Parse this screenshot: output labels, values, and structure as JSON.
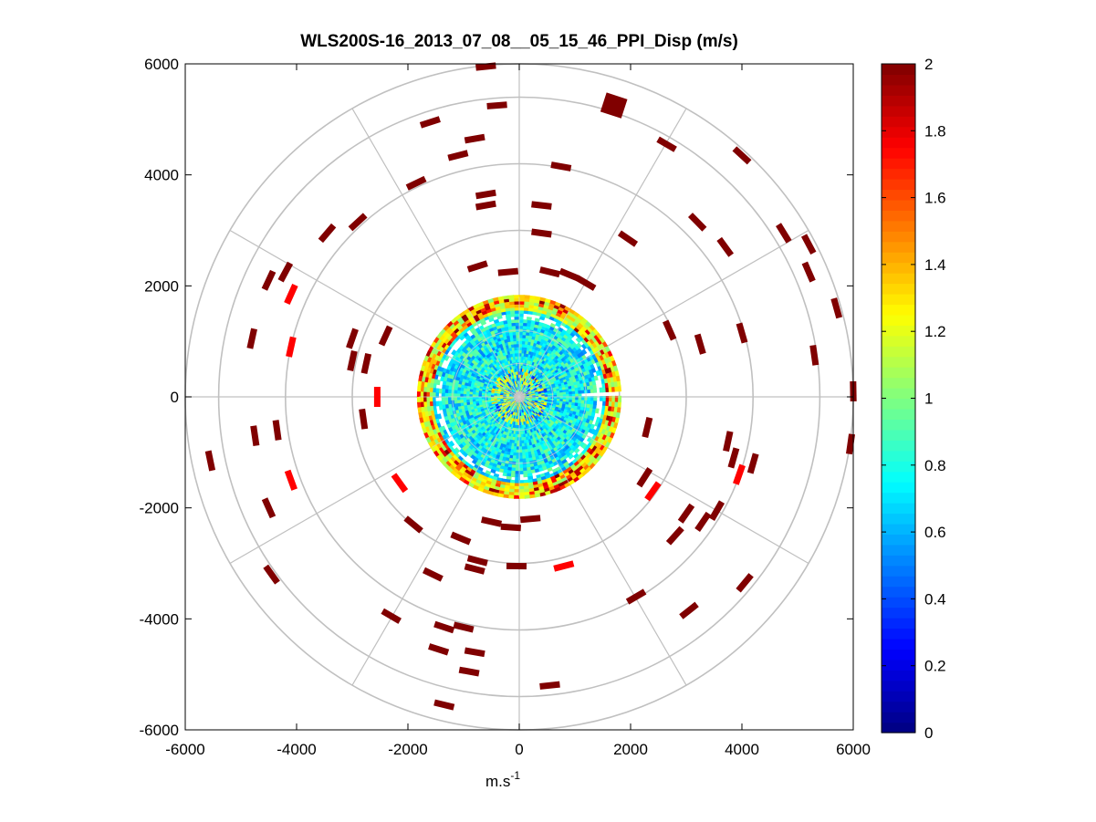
{
  "chart_data": {
    "type": "scatter",
    "subtype": "polar PPI scan (range gates coloured by value)",
    "title": "WLS200S-16_2013_07_08__05_15_46_PPI_Disp (m/s)",
    "xlabel": "m.s",
    "xlabel_superscript": "-1",
    "ylabel": "",
    "xlim": [
      -6000,
      6000
    ],
    "ylim": [
      -6000,
      6000
    ],
    "x_ticks": [
      "-6000",
      "-4000",
      "-2000",
      "0",
      "2000",
      "4000",
      "6000"
    ],
    "y_ticks": [
      "6000",
      "4000",
      "2000",
      "0",
      "-2000",
      "-4000",
      "-6000"
    ],
    "polar_grid": {
      "ring_radii": [
        1800,
        3000,
        4200,
        5400,
        6000
      ],
      "spoke_angles_deg": [
        0,
        30,
        60,
        90,
        120,
        150,
        180,
        210,
        240,
        270,
        300,
        330
      ],
      "grid": true,
      "grid_color": "#c0c0c0"
    },
    "colorbar": {
      "colormap": "jet",
      "clim": [
        0,
        2
      ],
      "ticks": [
        "0",
        "0.2",
        "0.4",
        "0.6",
        "0.8",
        "1",
        "1.2",
        "1.4",
        "1.6",
        "1.8",
        "2"
      ]
    },
    "dense_core": {
      "max_range": 1800,
      "typical_value_range": [
        0.5,
        1.0
      ],
      "gap_azimuth_deg": 3,
      "gap_min_range": 1100,
      "rim_range": [
        1500,
        1760
      ],
      "rim_value_range": [
        1.0,
        2.0
      ]
    },
    "points": [
      {
        "x": 1700,
        "y": 5250,
        "v": 2.0,
        "size": 2
      },
      {
        "x": -600,
        "y": 5950,
        "v": 2.0
      },
      {
        "x": -400,
        "y": 5250,
        "v": 2.0
      },
      {
        "x": -1600,
        "y": 4950,
        "v": 2.0
      },
      {
        "x": -800,
        "y": 4650,
        "v": 2.0
      },
      {
        "x": -1100,
        "y": 4350,
        "v": 2.0
      },
      {
        "x": 750,
        "y": 4150,
        "v": 2.0
      },
      {
        "x": 2650,
        "y": 4550,
        "v": 2.0
      },
      {
        "x": 4000,
        "y": 4350,
        "v": 2.0
      },
      {
        "x": -1850,
        "y": 3850,
        "v": 2.0
      },
      {
        "x": -600,
        "y": 3650,
        "v": 2.0
      },
      {
        "x": -600,
        "y": 3450,
        "v": 2.0
      },
      {
        "x": 400,
        "y": 3450,
        "v": 2.0
      },
      {
        "x": -2900,
        "y": 3150,
        "v": 2.0
      },
      {
        "x": 3200,
        "y": 3150,
        "v": 2.0
      },
      {
        "x": 4750,
        "y": 2950,
        "v": 2.0
      },
      {
        "x": -3450,
        "y": 2950,
        "v": 2.0
      },
      {
        "x": 400,
        "y": 2950,
        "v": 2.0
      },
      {
        "x": 1950,
        "y": 2850,
        "v": 2.0
      },
      {
        "x": 3700,
        "y": 2700,
        "v": 2.0
      },
      {
        "x": 5200,
        "y": 2750,
        "v": 2.0
      },
      {
        "x": -4200,
        "y": 2250,
        "v": 2.0
      },
      {
        "x": -4500,
        "y": 2100,
        "v": 2.0
      },
      {
        "x": -4100,
        "y": 1850,
        "v": 1.75
      },
      {
        "x": -750,
        "y": 2350,
        "v": 2.0
      },
      {
        "x": -200,
        "y": 2250,
        "v": 2.0
      },
      {
        "x": 550,
        "y": 2250,
        "v": 2.0
      },
      {
        "x": 900,
        "y": 2200,
        "v": 2.0
      },
      {
        "x": 1200,
        "y": 2050,
        "v": 2.0
      },
      {
        "x": 5200,
        "y": 2250,
        "v": 2.0
      },
      {
        "x": 5700,
        "y": 1600,
        "v": 2.0
      },
      {
        "x": -4800,
        "y": 1050,
        "v": 2.0
      },
      {
        "x": -4100,
        "y": 900,
        "v": 1.75
      },
      {
        "x": -3000,
        "y": 1050,
        "v": 2.0
      },
      {
        "x": -2400,
        "y": 1100,
        "v": 2.0
      },
      {
        "x": -3000,
        "y": 650,
        "v": 2.0
      },
      {
        "x": -2750,
        "y": 600,
        "v": 2.0
      },
      {
        "x": 2700,
        "y": 1200,
        "v": 2.0
      },
      {
        "x": 3250,
        "y": 950,
        "v": 2.0
      },
      {
        "x": 4000,
        "y": 1150,
        "v": 2.0
      },
      {
        "x": 5300,
        "y": 750,
        "v": 2.0
      },
      {
        "x": 6000,
        "y": 100,
        "v": 2.0
      },
      {
        "x": -2550,
        "y": 0,
        "v": 1.75
      },
      {
        "x": -2800,
        "y": -400,
        "v": 2.0
      },
      {
        "x": -4350,
        "y": -600,
        "v": 2.0
      },
      {
        "x": -4750,
        "y": -700,
        "v": 2.0
      },
      {
        "x": -5550,
        "y": -1150,
        "v": 2.0
      },
      {
        "x": -4100,
        "y": -1500,
        "v": 1.75
      },
      {
        "x": -4500,
        "y": -2000,
        "v": 2.0
      },
      {
        "x": -2150,
        "y": -1550,
        "v": 1.75
      },
      {
        "x": -1900,
        "y": -2300,
        "v": 2.0
      },
      {
        "x": 2300,
        "y": -550,
        "v": 2.0
      },
      {
        "x": 3750,
        "y": -800,
        "v": 2.0
      },
      {
        "x": 5950,
        "y": -850,
        "v": 2.0
      },
      {
        "x": 3850,
        "y": -1100,
        "v": 2.0
      },
      {
        "x": 3950,
        "y": -1400,
        "v": 1.75
      },
      {
        "x": 4200,
        "y": -1200,
        "v": 2.0
      },
      {
        "x": 2250,
        "y": -1450,
        "v": 2.0
      },
      {
        "x": 2400,
        "y": -1700,
        "v": 1.75
      },
      {
        "x": 3000,
        "y": -2100,
        "v": 2.0
      },
      {
        "x": 3300,
        "y": -2250,
        "v": 2.0
      },
      {
        "x": 3550,
        "y": -2050,
        "v": 2.0
      },
      {
        "x": 2800,
        "y": -2500,
        "v": 2.0
      },
      {
        "x": -500,
        "y": -2250,
        "v": 2.0
      },
      {
        "x": -150,
        "y": -2350,
        "v": 2.0
      },
      {
        "x": 200,
        "y": -2200,
        "v": 2.0
      },
      {
        "x": -1050,
        "y": -2550,
        "v": 2.0
      },
      {
        "x": -750,
        "y": -2950,
        "v": 2.0
      },
      {
        "x": -800,
        "y": -3100,
        "v": 2.0
      },
      {
        "x": -50,
        "y": -3050,
        "v": 2.0
      },
      {
        "x": 800,
        "y": -3050,
        "v": 1.75
      },
      {
        "x": -1550,
        "y": -3200,
        "v": 2.0
      },
      {
        "x": -4450,
        "y": -3200,
        "v": 2.0
      },
      {
        "x": 4050,
        "y": -3350,
        "v": 2.0
      },
      {
        "x": 2100,
        "y": -3600,
        "v": 2.0
      },
      {
        "x": -2300,
        "y": -3950,
        "v": 2.0
      },
      {
        "x": -1350,
        "y": -4150,
        "v": 2.0
      },
      {
        "x": -1000,
        "y": -4150,
        "v": 2.0
      },
      {
        "x": 3050,
        "y": -3850,
        "v": 2.0
      },
      {
        "x": -1450,
        "y": -4550,
        "v": 2.0
      },
      {
        "x": -800,
        "y": -4600,
        "v": 2.0
      },
      {
        "x": -900,
        "y": -4950,
        "v": 2.0
      },
      {
        "x": 550,
        "y": -5200,
        "v": 2.0
      },
      {
        "x": -1350,
        "y": -5550,
        "v": 2.0
      }
    ]
  }
}
